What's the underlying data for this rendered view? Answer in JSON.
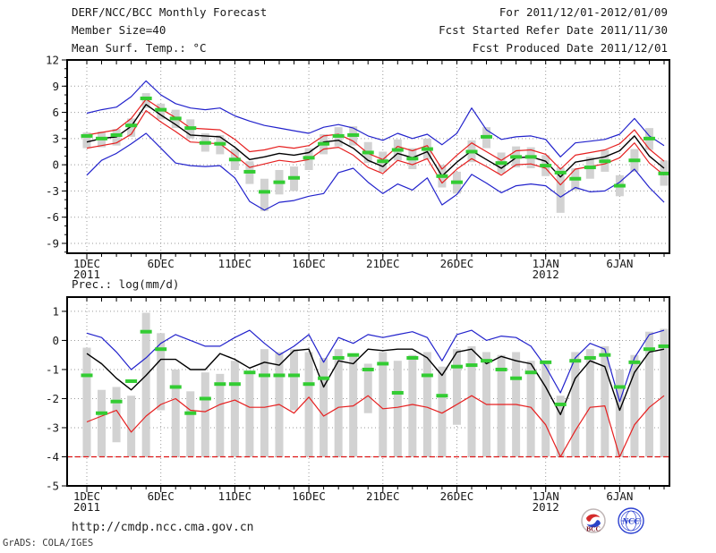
{
  "header": {
    "title": "DERF/NCC/BCC Monthly Forecast",
    "member_size": "Member Size=40",
    "for_range": "For 2011/12/01-2012/01/09",
    "fcst_refer": "Fcst Started Refer Date 2011/11/30",
    "fcst_produced": "Fcst Produced Date 2011/12/01"
  },
  "footer": {
    "url": "http://cmdp.ncc.cma.gov.cn",
    "stamp": "GrADS: COLA/IGES",
    "logo_bcc": "BCC",
    "logo_ncc": "NCC"
  },
  "colors": {
    "envelope_blue": "#2222cc",
    "quantile_red": "#e62020",
    "mean_black": "#000000",
    "obs_green": "#33cc33",
    "bar_gray": "#d2d2d2",
    "grid_gray": "#9a9a9a"
  },
  "chart_data": [
    {
      "type": "line",
      "title": "Mean Surf. Temp.: °C",
      "ylim": [
        -10.1,
        12
      ],
      "y_ticks": [
        12,
        9,
        6,
        3,
        0,
        -3,
        -6,
        -9
      ],
      "grid": true,
      "x": {
        "n_points": 40,
        "ticks": [
          {
            "day": 0,
            "label": "1DEC",
            "sub": "2011"
          },
          {
            "day": 5,
            "label": "6DEC"
          },
          {
            "day": 10,
            "label": "11DEC"
          },
          {
            "day": 15,
            "label": "16DEC"
          },
          {
            "day": 20,
            "label": "21DEC"
          },
          {
            "day": 25,
            "label": "26DEC"
          },
          {
            "day": 31,
            "label": "1JAN",
            "sub": "2012"
          },
          {
            "day": 36,
            "label": "6JAN"
          }
        ]
      },
      "series": [
        {
          "name": "blue-upper",
          "color": "#2222cc",
          "values": [
            5.9,
            6.3,
            6.6,
            7.8,
            9.6,
            8.0,
            7.0,
            6.5,
            6.3,
            6.5,
            5.6,
            5.0,
            4.5,
            4.2,
            3.9,
            3.6,
            4.3,
            4.6,
            4.2,
            3.3,
            2.8,
            3.6,
            3.0,
            3.5,
            2.3,
            3.6,
            6.5,
            4.0,
            2.9,
            3.2,
            3.3,
            2.9,
            0.9,
            2.5,
            2.7,
            2.9,
            3.5,
            5.3,
            3.3,
            2.2
          ]
        },
        {
          "name": "red-upper",
          "color": "#e62020",
          "values": [
            3.4,
            3.7,
            4.0,
            5.3,
            7.5,
            6.4,
            5.4,
            4.2,
            4.1,
            4.0,
            2.9,
            1.5,
            1.7,
            2.1,
            1.9,
            2.2,
            3.3,
            3.5,
            2.7,
            1.3,
            0.6,
            2.1,
            1.6,
            2.2,
            -0.5,
            1.1,
            2.5,
            1.5,
            0.5,
            1.6,
            1.7,
            1.2,
            -0.5,
            1.1,
            1.4,
            1.7,
            2.4,
            4.0,
            1.8,
            0.4
          ]
        },
        {
          "name": "red-lower",
          "color": "#e62020",
          "values": [
            1.9,
            2.2,
            2.5,
            3.5,
            6.2,
            4.9,
            3.8,
            2.6,
            2.5,
            2.4,
            1.1,
            -0.3,
            0.1,
            0.5,
            0.3,
            0.6,
            1.8,
            2.0,
            1.1,
            -0.3,
            -1.0,
            0.5,
            0.0,
            0.7,
            -2.1,
            -0.5,
            0.7,
            -0.2,
            -1.2,
            0.0,
            0.1,
            -0.4,
            -2.3,
            -0.5,
            -0.2,
            0.1,
            0.8,
            2.5,
            0.2,
            -1.2
          ]
        },
        {
          "name": "blue-lower",
          "color": "#2222cc",
          "values": [
            -1.2,
            0.5,
            1.3,
            2.4,
            3.6,
            1.9,
            0.2,
            -0.1,
            -0.2,
            -0.1,
            -1.5,
            -4.2,
            -5.2,
            -4.3,
            -4.1,
            -3.6,
            -3.3,
            -0.9,
            -0.4,
            -2.0,
            -3.3,
            -2.2,
            -2.9,
            -1.5,
            -4.6,
            -3.4,
            -1.1,
            -2.1,
            -3.2,
            -2.4,
            -2.2,
            -2.4,
            -3.7,
            -2.6,
            -3.1,
            -3.0,
            -2.0,
            -0.5,
            -2.6,
            -4.3
          ]
        },
        {
          "name": "mean",
          "color": "#000000",
          "values": [
            2.6,
            3.0,
            3.2,
            4.4,
            6.9,
            5.7,
            4.6,
            3.4,
            3.3,
            3.2,
            2.0,
            0.6,
            0.9,
            1.3,
            1.1,
            1.4,
            2.6,
            2.8,
            1.9,
            0.5,
            -0.2,
            1.3,
            0.8,
            1.5,
            -1.3,
            0.3,
            1.6,
            0.6,
            -0.4,
            0.8,
            0.9,
            0.4,
            -1.4,
            0.3,
            0.6,
            0.9,
            1.6,
            3.3,
            1.0,
            -0.4
          ]
        }
      ],
      "obs": {
        "name": "obs-dash",
        "color": "#33cc33",
        "values": [
          3.3,
          3.0,
          3.4,
          4.5,
          7.6,
          6.3,
          5.3,
          4.2,
          2.5,
          2.4,
          0.6,
          -0.8,
          -3.1,
          -2.0,
          -1.5,
          0.8,
          2.4,
          3.3,
          3.4,
          1.4,
          0.4,
          1.7,
          0.7,
          1.8,
          -1.3,
          -2.0,
          1.5,
          3.2,
          0.2,
          0.9,
          0.9,
          -0.1,
          -0.9,
          -1.6,
          -0.3,
          0.4,
          -2.4,
          0.5,
          3.0,
          -1.0
        ]
      },
      "bars": {
        "name": "spread-bar",
        "color": "#d2d2d2",
        "top": [
          3.7,
          3.8,
          4.1,
          5.3,
          8.2,
          7.0,
          6.3,
          5.2,
          3.6,
          3.4,
          1.8,
          0.4,
          -1.6,
          -0.6,
          -0.2,
          1.9,
          3.5,
          4.3,
          4.4,
          2.6,
          1.5,
          2.9,
          1.9,
          3.0,
          0.0,
          -0.8,
          2.8,
          4.3,
          1.4,
          2.1,
          2.0,
          1.1,
          -0.3,
          -0.4,
          0.9,
          1.7,
          -1.2,
          1.8,
          4.2,
          0.5
        ],
        "bottom": [
          1.9,
          2.0,
          2.2,
          3.2,
          6.5,
          5.2,
          4.2,
          3.0,
          1.5,
          1.2,
          -0.6,
          -2.2,
          -5.3,
          -3.4,
          -3.0,
          -0.6,
          1.2,
          2.1,
          2.2,
          0.2,
          -0.8,
          0.5,
          -0.5,
          0.6,
          -2.6,
          -3.3,
          0.3,
          1.9,
          -1.0,
          -0.3,
          -0.4,
          -1.3,
          -5.5,
          -2.9,
          -1.6,
          -0.8,
          -3.6,
          -0.8,
          1.7,
          -2.4
        ]
      }
    },
    {
      "type": "line",
      "title": "Prec.: log(mm/d)",
      "ylim": [
        -5,
        1.5
      ],
      "y_ticks": [
        1,
        0,
        -1,
        -2,
        -3,
        -4,
        -5
      ],
      "grid": true,
      "x": {
        "n_points": 40,
        "ticks": [
          {
            "day": 0,
            "label": "1DEC",
            "sub": "2011"
          },
          {
            "day": 5,
            "label": "6DEC"
          },
          {
            "day": 10,
            "label": "11DEC"
          },
          {
            "day": 15,
            "label": "16DEC"
          },
          {
            "day": 20,
            "label": "21DEC"
          },
          {
            "day": 25,
            "label": "26DEC"
          },
          {
            "day": 31,
            "label": "1JAN",
            "sub": "2012"
          },
          {
            "day": 36,
            "label": "6JAN"
          }
        ]
      },
      "series": [
        {
          "name": "blue-upper",
          "color": "#2222cc",
          "values": [
            0.25,
            0.1,
            -0.4,
            -1.0,
            -0.6,
            -0.1,
            0.2,
            0.0,
            -0.2,
            -0.2,
            0.1,
            0.35,
            -0.1,
            -0.5,
            -0.2,
            0.2,
            -0.75,
            0.1,
            -0.1,
            0.2,
            0.1,
            0.2,
            0.3,
            0.1,
            -0.7,
            0.2,
            0.35,
            0.0,
            0.15,
            0.1,
            -0.2,
            -0.9,
            -1.8,
            -0.6,
            -0.1,
            -0.3,
            -2.1,
            -0.6,
            0.2,
            0.35
          ]
        },
        {
          "name": "red-lower",
          "color": "#e62020",
          "values": [
            -2.8,
            -2.6,
            -2.4,
            -3.15,
            -2.6,
            -2.2,
            -2.0,
            -2.4,
            -2.45,
            -2.2,
            -2.05,
            -2.3,
            -2.3,
            -2.2,
            -2.5,
            -1.95,
            -2.6,
            -2.3,
            -2.25,
            -1.9,
            -2.35,
            -2.3,
            -2.2,
            -2.3,
            -2.5,
            -2.2,
            -1.9,
            -2.2,
            -2.2,
            -2.2,
            -2.3,
            -2.9,
            -4.0,
            -3.1,
            -2.3,
            -2.25,
            -4.0,
            -2.9,
            -2.3,
            -1.9
          ]
        },
        {
          "name": "mean",
          "color": "#000000",
          "values": [
            -0.45,
            -0.8,
            -1.3,
            -1.7,
            -1.2,
            -0.65,
            -0.65,
            -1.0,
            -1.0,
            -0.45,
            -0.65,
            -0.95,
            -0.75,
            -0.85,
            -0.35,
            -0.3,
            -1.6,
            -0.7,
            -0.8,
            -0.3,
            -0.35,
            -0.3,
            -0.3,
            -0.6,
            -1.2,
            -0.4,
            -0.3,
            -0.8,
            -0.55,
            -0.7,
            -0.8,
            -1.6,
            -2.55,
            -1.3,
            -0.7,
            -0.9,
            -2.4,
            -1.1,
            -0.4,
            -0.3
          ]
        }
      ],
      "obs": {
        "name": "obs-dash",
        "color": "#33cc33",
        "values": [
          -1.2,
          -2.5,
          -2.1,
          -1.4,
          0.3,
          -0.3,
          -1.6,
          -2.5,
          -2.0,
          -1.5,
          -1.5,
          -1.1,
          -1.2,
          -1.2,
          -1.2,
          -1.5,
          -1.3,
          -0.6,
          -0.5,
          -1.0,
          -0.8,
          -1.8,
          -0.6,
          -1.2,
          -1.9,
          -0.9,
          -0.85,
          -0.7,
          -1.0,
          -1.3,
          -1.1,
          -0.75,
          -2.2,
          -0.7,
          -0.6,
          -0.5,
          -1.6,
          -0.75,
          -0.3,
          -0.2
        ]
      },
      "bars": {
        "name": "spread-bar",
        "color": "#d2d2d2",
        "top": [
          -0.25,
          -1.7,
          -1.6,
          -1.9,
          0.95,
          0.25,
          -1.0,
          -1.75,
          -1.1,
          -1.15,
          -0.7,
          -1.1,
          -0.3,
          -0.4,
          -0.3,
          -0.4,
          -0.6,
          -0.3,
          -0.5,
          -0.8,
          -0.4,
          -0.7,
          -0.5,
          -0.4,
          -0.9,
          -0.3,
          -0.2,
          -0.4,
          -0.5,
          -0.4,
          -0.7,
          -0.8,
          -1.9,
          -0.4,
          -0.3,
          -0.2,
          -1.0,
          -0.5,
          0.3,
          0.4
        ],
        "bottom": [
          -4,
          -4,
          -3.5,
          -4,
          -4,
          -2.4,
          -4,
          -4,
          -4,
          -4,
          -4,
          -4,
          -4,
          -4,
          -2.4,
          -4,
          -4,
          -4,
          -4,
          -2.5,
          -4,
          -4,
          -4,
          -4,
          -4,
          -2.9,
          -4,
          -4,
          -4,
          -4,
          -4,
          -4,
          -4,
          -4,
          -4,
          -4,
          -4,
          -4,
          -4,
          -4
        ]
      },
      "baseline": {
        "value": -4,
        "color": "#dd1515"
      }
    }
  ]
}
